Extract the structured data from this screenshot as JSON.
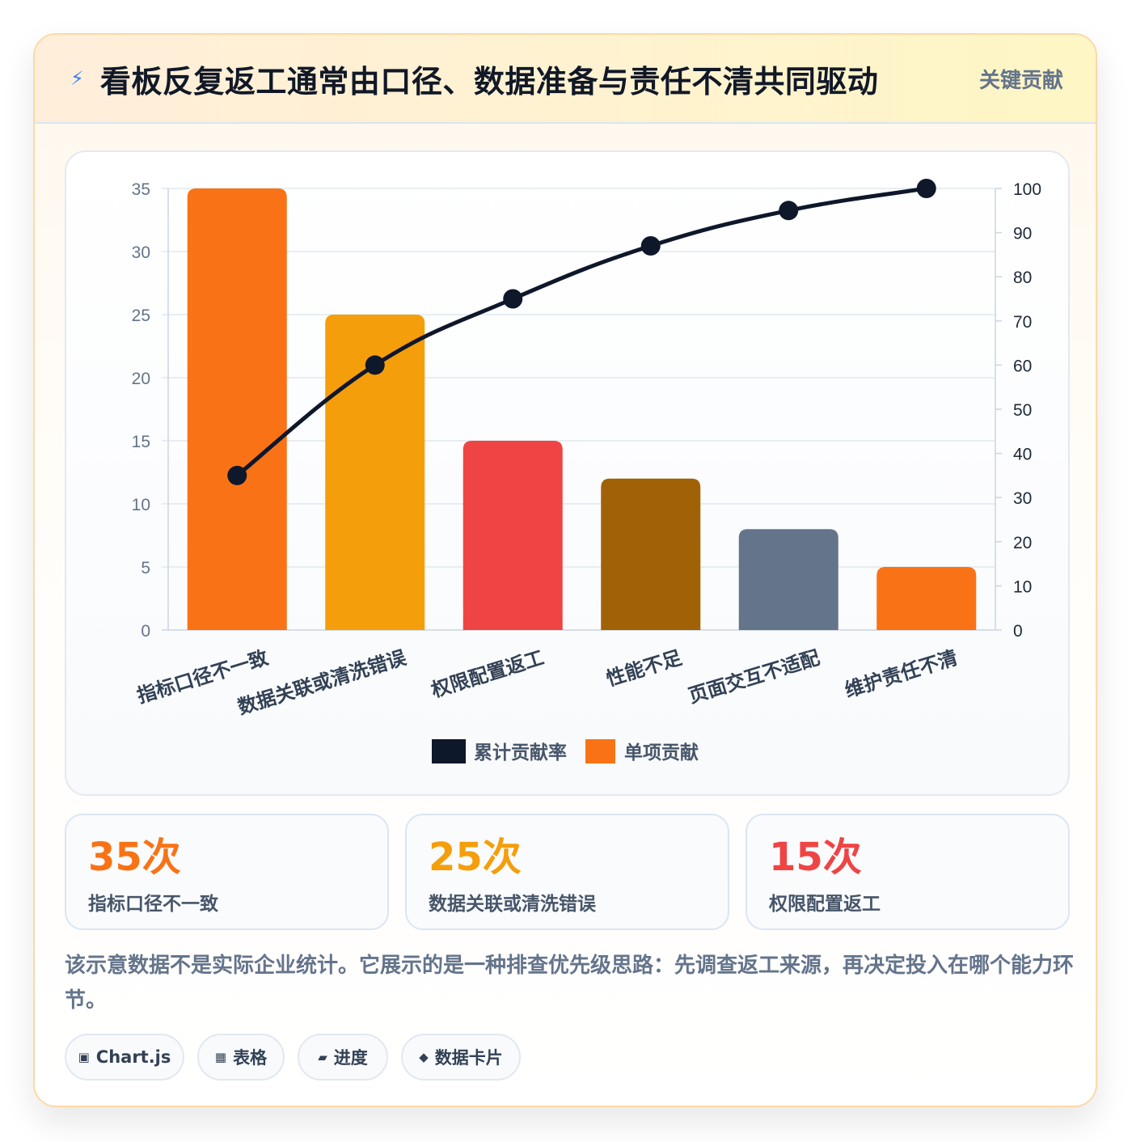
{
  "header": {
    "icon": "lightning-icon",
    "title": "看板反复返工通常由口径、数据准备与责任不清共同驱动",
    "tag": "关键贡献"
  },
  "chart_data": {
    "type": "bar",
    "categories": [
      "指标口径不一致",
      "数据关联或清洗错误",
      "权限配置返工",
      "性能不足",
      "页面交互不适配",
      "维护责任不清"
    ],
    "series": [
      {
        "name": "单项贡献",
        "type": "bar",
        "axis": "left",
        "values": [
          35,
          25,
          15,
          12,
          8,
          5
        ],
        "colors": [
          "#f97316",
          "#f59e0b",
          "#ef4444",
          "#a16207",
          "#64748b",
          "#f97316"
        ]
      },
      {
        "name": "累计贡献率",
        "type": "line",
        "axis": "right",
        "values": [
          35,
          60,
          75,
          87,
          95,
          100
        ],
        "color": "#0f172a"
      }
    ],
    "ylim": [
      0,
      35
    ],
    "y_ticks": [
      0,
      5,
      10,
      15,
      20,
      25,
      30,
      35
    ],
    "y2lim": [
      0,
      100
    ],
    "y2_ticks": [
      0,
      10,
      20,
      30,
      40,
      50,
      60,
      70,
      80,
      90,
      100
    ],
    "grid": true,
    "legend_position": "bottom",
    "legend": [
      {
        "label": "累计贡献率",
        "color": "#0f172a"
      },
      {
        "label": "单项贡献",
        "color": "#f97316"
      }
    ]
  },
  "stats": [
    {
      "value": "35次",
      "label": "指标口径不一致",
      "color": "#f97316"
    },
    {
      "value": "25次",
      "label": "数据关联或清洗错误",
      "color": "#f59e0b"
    },
    {
      "value": "15次",
      "label": "权限配置返工",
      "color": "#ef4444"
    }
  ],
  "note": "该示意数据不是实际企业统计。它展示的是一种排查优先级思路：先调查返工来源，再决定投入在哪个能力环节。",
  "chips": [
    {
      "icon": "▣",
      "icon_name": "chart-icon",
      "label": "Chart.js"
    },
    {
      "icon": "▦",
      "icon_name": "table-icon",
      "label": "表格"
    },
    {
      "icon": "▰",
      "icon_name": "progress-icon",
      "label": "进度"
    },
    {
      "icon": "◆",
      "icon_name": "diamond-icon",
      "label": "数据卡片"
    }
  ]
}
